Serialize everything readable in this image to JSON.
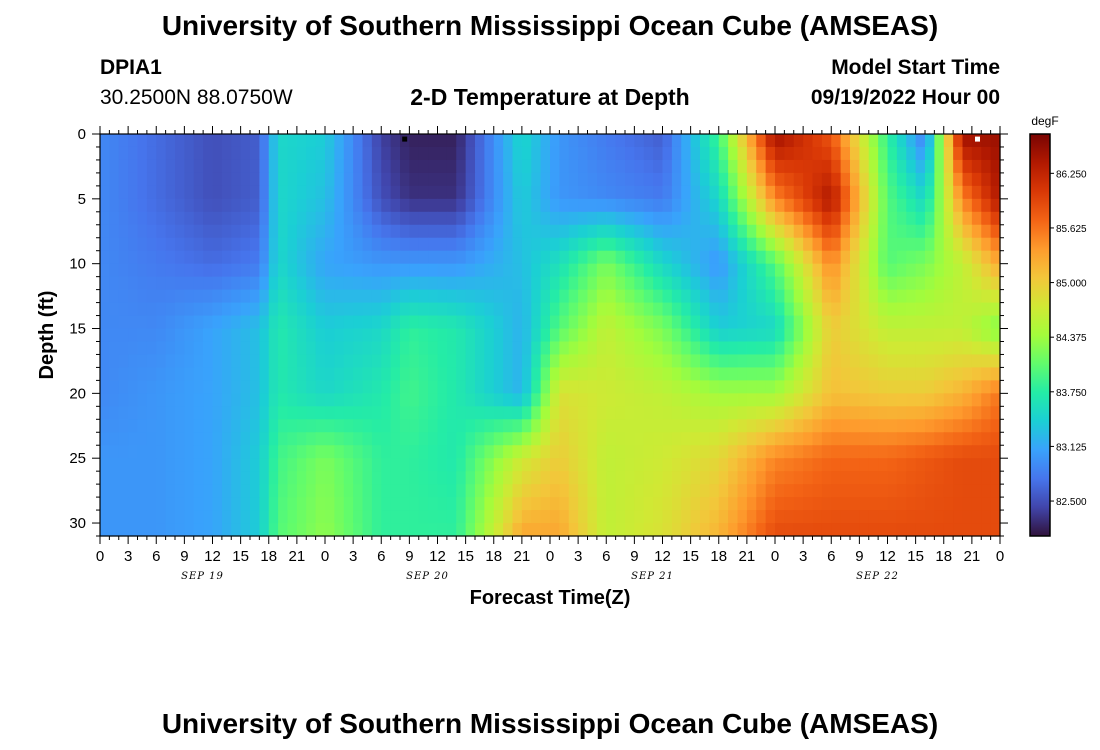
{
  "page": {
    "title_top": "University of Southern Mississippi Ocean Cube (AMSEAS)",
    "title_bottom": "University of Southern Mississippi Ocean Cube (AMSEAS)",
    "station_id": "DPIA1",
    "station_coords": "30.2500N  88.0750W",
    "plot_title": "2-D Temperature at Depth",
    "model_start_label": "Model Start Time",
    "model_start_value": "09/19/2022 Hour 00"
  },
  "chart_data": {
    "type": "heatmap",
    "title": "2-D Temperature at Depth",
    "xlabel": "Forecast Time(Z)",
    "ylabel": "Depth (ft)",
    "colorbar_units": "degF",
    "x_range_hours": [
      0,
      96
    ],
    "y_range_ft": [
      0,
      31
    ],
    "y_ticks": [
      0,
      5,
      10,
      15,
      20,
      25,
      30
    ],
    "x_tick_labels": [
      "0",
      "3",
      "6",
      "9",
      "12",
      "15",
      "18",
      "21",
      "0",
      "3",
      "6",
      "9",
      "12",
      "15",
      "18",
      "21",
      "0",
      "3",
      "6",
      "9",
      "12",
      "15",
      "18",
      "21",
      "0",
      "3",
      "6",
      "9",
      "12",
      "15",
      "18",
      "21",
      "0"
    ],
    "date_labels": [
      "SEP 19",
      "SEP 20",
      "SEP 21",
      "SEP 22"
    ],
    "colorbar_ticks": [
      "86.250",
      "85.625",
      "85.000",
      "84.375",
      "83.750",
      "83.125",
      "82.500"
    ],
    "colorbar_tick_values": [
      86.25,
      85.625,
      85.0,
      84.375,
      83.75,
      83.125,
      82.5
    ],
    "value_range": [
      82.1,
      86.7
    ],
    "colormap": [
      "#30123b",
      "#4145ab",
      "#4675ed",
      "#39a2fc",
      "#1bcfd4",
      "#24eca6",
      "#61fc6c",
      "#a4fc3b",
      "#d1e834",
      "#f3c63a",
      "#fe9b2d",
      "#f36315",
      "#d93806",
      "#b11901",
      "#7a0402"
    ],
    "depth_levels_ft": [
      0,
      5,
      10,
      15,
      20,
      25,
      31
    ],
    "times_hours": [
      0,
      6,
      12,
      17,
      19,
      24,
      30,
      33,
      38,
      45,
      49,
      54,
      60,
      66,
      72,
      78,
      84,
      88,
      92,
      96
    ],
    "temperature_degF": [
      [
        82.9,
        82.7,
        82.5,
        82.6,
        83.5,
        83.4,
        82.4,
        82.2,
        82.2,
        83.5,
        83.0,
        82.8,
        82.6,
        83.9,
        86.5,
        85.8,
        83.8,
        82.8,
        86.5,
        86.5
      ],
      [
        82.9,
        82.7,
        82.5,
        82.6,
        83.5,
        83.3,
        82.5,
        82.3,
        82.3,
        83.4,
        83.0,
        82.9,
        82.8,
        83.5,
        85.5,
        86.4,
        84.0,
        83.5,
        85.5,
        86.4
      ],
      [
        82.9,
        82.8,
        82.7,
        82.8,
        83.5,
        83.1,
        83.0,
        83.0,
        83.0,
        83.3,
        83.6,
        84.2,
        83.5,
        83.0,
        84.0,
        85.5,
        84.0,
        84.2,
        84.6,
        85.3
      ],
      [
        82.9,
        82.9,
        83.1,
        83.3,
        83.7,
        83.4,
        83.5,
        83.8,
        83.7,
        83.2,
        84.0,
        84.6,
        84.2,
        83.4,
        83.5,
        85.0,
        84.6,
        84.6,
        84.6,
        84.2
      ],
      [
        82.9,
        83.0,
        83.1,
        83.3,
        83.7,
        83.5,
        83.7,
        83.9,
        83.7,
        83.2,
        84.8,
        84.7,
        84.6,
        84.4,
        84.4,
        85.1,
        85.0,
        85.0,
        85.2,
        85.6
      ],
      [
        83.0,
        83.0,
        83.1,
        83.4,
        83.9,
        84.2,
        83.8,
        83.8,
        83.7,
        84.7,
        85.0,
        84.6,
        84.7,
        84.9,
        85.5,
        85.7,
        85.7,
        85.8,
        85.9,
        85.9
      ],
      [
        83.0,
        83.0,
        83.1,
        83.4,
        84.0,
        84.3,
        83.8,
        83.8,
        83.8,
        85.3,
        85.3,
        84.6,
        84.8,
        85.2,
        85.9,
        85.9,
        85.9,
        85.9,
        85.9,
        85.9
      ]
    ],
    "markers": [
      {
        "time_hours": 32.5,
        "depth_ft": 0.2,
        "color": "#000000"
      },
      {
        "time_hours": 93.6,
        "depth_ft": 0.2,
        "color": "#ffffff"
      }
    ]
  }
}
